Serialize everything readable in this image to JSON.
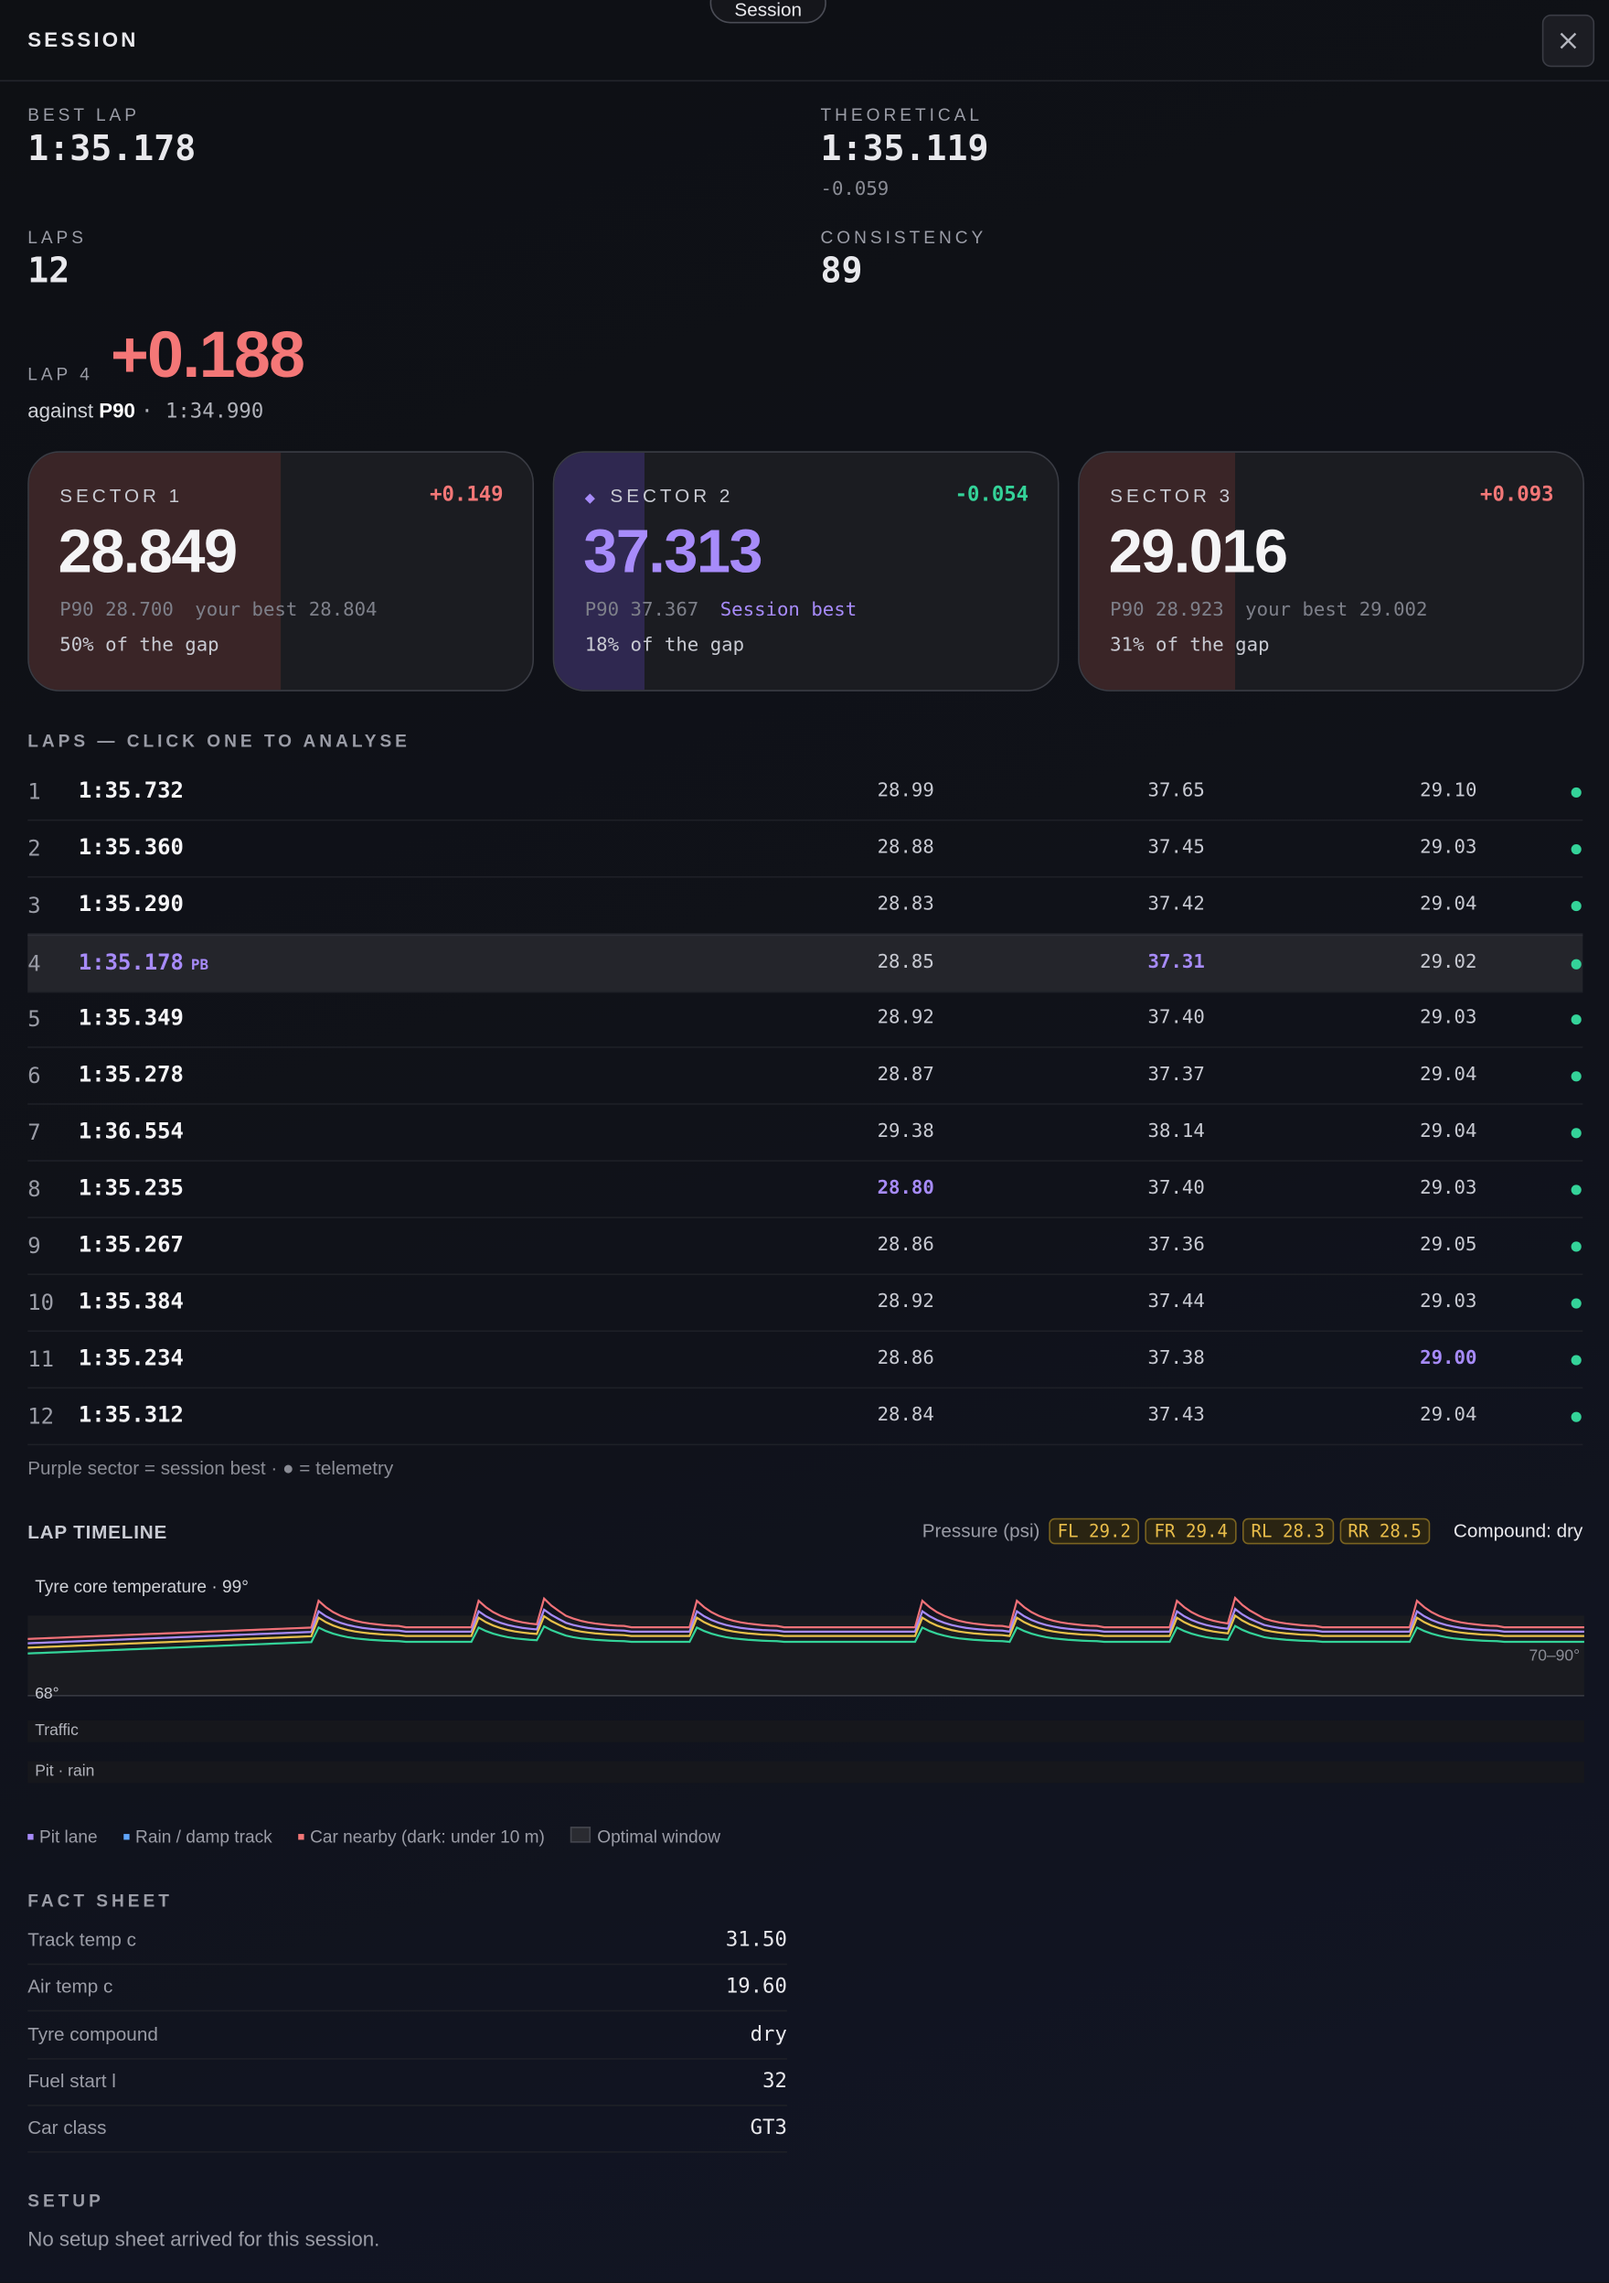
{
  "header": {
    "title": "SESSION",
    "tab": "Session"
  },
  "summary": [
    {
      "label": "BEST LAP",
      "value": "1:35.178"
    },
    {
      "label": "THEORETICAL",
      "value": "1:35.119",
      "sub": "-0.059"
    },
    {
      "label": "LAPS",
      "value": "12"
    },
    {
      "label": "CONSISTENCY",
      "value": "89"
    }
  ],
  "focus": {
    "lap": "LAP 4",
    "delta": "+0.188",
    "against": "against",
    "ref": "P90",
    "ref_time": "· 1:34.990"
  },
  "sectors": [
    {
      "name": "SECTOR 1",
      "delta": "+0.149",
      "time": "28.849",
      "p90": "P90 28.700",
      "best": "your best 28.804",
      "gap": 50,
      "gap_label": "50% of the gap",
      "tone": "slow"
    },
    {
      "marker": "◆",
      "name": "SECTOR 2",
      "delta": "-0.054",
      "time": "37.313",
      "p90": "P90 37.367",
      "best": "Session best",
      "gap": 18,
      "gap_label": "18% of the gap",
      "tone": "best"
    },
    {
      "name": "SECTOR 3",
      "delta": "+0.093",
      "time": "29.016",
      "p90": "P90 28.923",
      "best": "your best 29.002",
      "gap": 31,
      "gap_label": "31% of the gap",
      "tone": "slow"
    }
  ],
  "laps_title": "LAPS — CLICK ONE TO ANALYSE",
  "laps": [
    {
      "n": "1",
      "time": "1:35.732",
      "s1": "28.99",
      "s2": "37.65",
      "s3": "29.10",
      "best": []
    },
    {
      "n": "2",
      "time": "1:35.360",
      "s1": "28.88",
      "s2": "37.45",
      "s3": "29.03",
      "best": []
    },
    {
      "n": "3",
      "time": "1:35.290",
      "s1": "28.83",
      "s2": "37.42",
      "s3": "29.04",
      "best": []
    },
    {
      "n": "4",
      "time": "1:35.178",
      "pb": "PB",
      "s1": "28.85",
      "s2": "37.31",
      "s3": "29.02",
      "best": [
        "time",
        "s2"
      ],
      "selected": true
    },
    {
      "n": "5",
      "time": "1:35.349",
      "s1": "28.92",
      "s2": "37.40",
      "s3": "29.03",
      "best": []
    },
    {
      "n": "6",
      "time": "1:35.278",
      "s1": "28.87",
      "s2": "37.37",
      "s3": "29.04",
      "best": []
    },
    {
      "n": "7",
      "time": "1:36.554",
      "s1": "29.38",
      "s2": "38.14",
      "s3": "29.04",
      "best": []
    },
    {
      "n": "8",
      "time": "1:35.235",
      "s1": "28.80",
      "s2": "37.40",
      "s3": "29.03",
      "best": [
        "s1"
      ]
    },
    {
      "n": "9",
      "time": "1:35.267",
      "s1": "28.86",
      "s2": "37.36",
      "s3": "29.05",
      "best": []
    },
    {
      "n": "10",
      "time": "1:35.384",
      "s1": "28.92",
      "s2": "37.44",
      "s3": "29.03",
      "best": []
    },
    {
      "n": "11",
      "time": "1:35.234",
      "s1": "28.86",
      "s2": "37.38",
      "s3": "29.00",
      "best": [
        "s3"
      ]
    },
    {
      "n": "12",
      "time": "1:35.312",
      "s1": "28.84",
      "s2": "37.43",
      "s3": "29.04",
      "best": []
    }
  ],
  "laps_note": "Purple sector = session best · ● = telemetry",
  "timeline": {
    "title": "LAP TIMELINE",
    "pressure_label": "Pressure (psi)",
    "pressures": [
      "FL 29.2",
      "FR 29.4",
      "RL 28.3",
      "RR 28.5"
    ],
    "compound": "Compound: dry",
    "chart_label": "Tyre core temperature · 99°",
    "window": "70–90°",
    "min": "68°",
    "tracks": [
      "Traffic",
      "Pit · rain"
    ],
    "legend": [
      "Pit lane",
      "Rain / damp track",
      "Car nearby (dark: under 10 m)",
      "Optimal window"
    ]
  },
  "facts": {
    "title": "FACT SHEET",
    "rows": [
      [
        "Track temp c",
        "31.50"
      ],
      [
        "Air temp c",
        "19.60"
      ],
      [
        "Tyre compound",
        "dry"
      ],
      [
        "Fuel start l",
        "32"
      ],
      [
        "Car class",
        "GT3"
      ]
    ]
  },
  "setup": {
    "title": "SETUP",
    "text": "No setup sheet arrived for this session."
  }
}
